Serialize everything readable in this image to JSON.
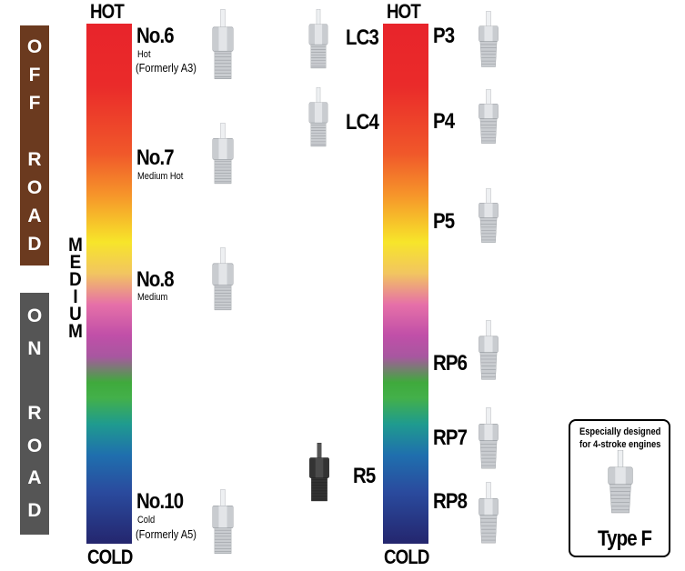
{
  "categories": {
    "off_road": "OFF ROAD",
    "on_road": "ON ROAD",
    "off_road_color": "#6b3a1f",
    "on_road_color": "#555555"
  },
  "middle_label": "MEDIUM",
  "left_scale": {
    "hot": "HOT",
    "cold": "COLD"
  },
  "right_scale": {
    "hot": "HOT",
    "cold": "COLD"
  },
  "left_plugs": [
    {
      "name": "No.6",
      "desc": "Hot",
      "note": "(Formerly A3)"
    },
    {
      "name": "No.7",
      "desc": "Medium Hot"
    },
    {
      "name": "No.8",
      "desc": "Medium"
    },
    {
      "name": "No.10",
      "desc": "Cold",
      "note": "(Formerly A5)"
    }
  ],
  "middle_plugs": [
    {
      "name": "LC3"
    },
    {
      "name": "LC4"
    },
    {
      "name": "R5"
    }
  ],
  "right_plugs": [
    {
      "name": "P3"
    },
    {
      "name": "P4"
    },
    {
      "name": "P5"
    },
    {
      "name": "RP6"
    },
    {
      "name": "RP7"
    },
    {
      "name": "RP8"
    }
  ],
  "type_f": {
    "caption_line1": "Especially designed",
    "caption_line2": "for 4-stroke engines",
    "name": "Type F"
  }
}
